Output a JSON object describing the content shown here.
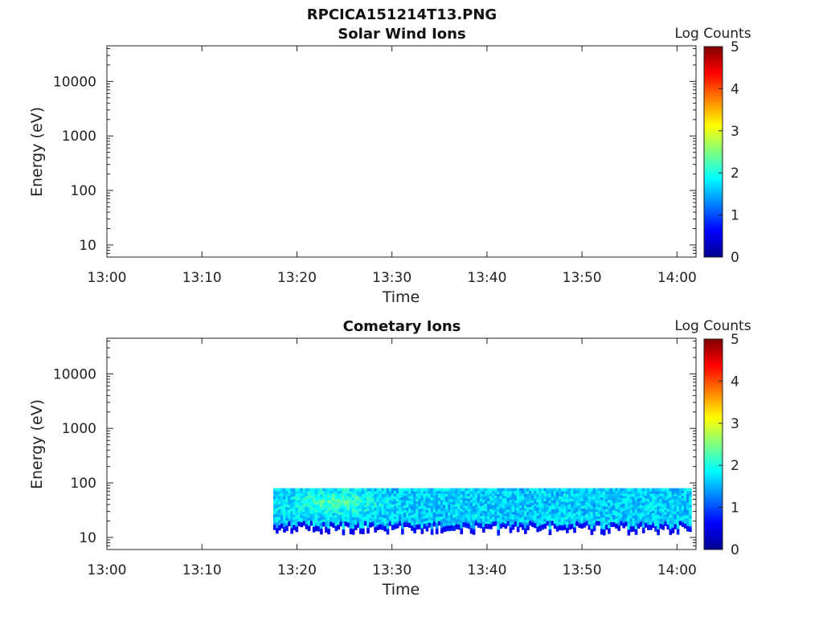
{
  "figure": {
    "title": "RPCICA151214T13.PNG"
  },
  "chart_data": [
    {
      "type": "heatmap",
      "title": "Solar Wind Ions",
      "xlabel": "Time",
      "ylabel": "Energy (eV)",
      "x_ticks": [
        "13:00",
        "13:10",
        "13:20",
        "13:30",
        "13:40",
        "13:50",
        "14:00"
      ],
      "x_range_minutes": [
        0,
        62
      ],
      "y_scale": "log",
      "y_ticks": [
        "10",
        "100",
        "1000",
        "10000"
      ],
      "y_range": [
        6,
        45000
      ],
      "colorbar": {
        "label": "Log Counts",
        "ticks": [
          "0",
          "1",
          "2",
          "3",
          "4",
          "5"
        ],
        "range": [
          0,
          5
        ],
        "colormap": "jet"
      },
      "data": null
    },
    {
      "type": "heatmap",
      "title": "Cometary Ions",
      "xlabel": "Time",
      "ylabel": "Energy (eV)",
      "x_ticks": [
        "13:00",
        "13:10",
        "13:20",
        "13:30",
        "13:40",
        "13:50",
        "14:00"
      ],
      "x_range_minutes": [
        0,
        62
      ],
      "y_scale": "log",
      "y_ticks": [
        "10",
        "100",
        "1000",
        "10000"
      ],
      "y_range": [
        6,
        45000
      ],
      "colorbar": {
        "label": "Log Counts",
        "ticks": [
          "0",
          "1",
          "2",
          "3",
          "4",
          "5"
        ],
        "range": [
          0,
          5
        ],
        "colormap": "jet"
      },
      "data": {
        "time_start": "13:17:30",
        "time_end": "14:01:30",
        "energy_upper_eV": 80,
        "energy_lower_eV": [
          11,
          17
        ],
        "typical_log_counts": [
          1.3,
          2.0
        ],
        "peak_log_counts": 2.6,
        "peak_time": "13:24",
        "peak_energy_eV": 45
      }
    }
  ]
}
